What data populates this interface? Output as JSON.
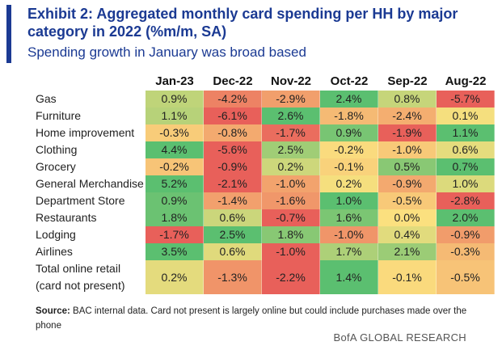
{
  "title": "Exhibit 2: Aggregated monthly card spending per HH by major category in 2022 (%m/m, SA)",
  "subtitle": "Spending growth in January was broad based",
  "chart_data": {
    "type": "table",
    "columns": [
      "Jan-23",
      "Dec-22",
      "Nov-22",
      "Oct-22",
      "Sep-22",
      "Aug-22"
    ],
    "rows": [
      {
        "label": "Gas",
        "values": [
          0.9,
          -4.2,
          -2.9,
          2.4,
          0.8,
          -5.7
        ]
      },
      {
        "label": "Furniture",
        "values": [
          1.1,
          -6.1,
          2.6,
          -1.8,
          -2.4,
          0.1
        ]
      },
      {
        "label": "Home improvement",
        "values": [
          -0.3,
          -0.8,
          -1.7,
          0.9,
          -1.9,
          1.1
        ]
      },
      {
        "label": "Clothing",
        "values": [
          4.4,
          -5.6,
          2.5,
          -0.2,
          -1.0,
          0.6
        ]
      },
      {
        "label": "Grocery",
        "values": [
          -0.2,
          -0.9,
          0.2,
          -0.1,
          0.5,
          0.7
        ]
      },
      {
        "label": "General Merchandise",
        "values": [
          5.2,
          -2.1,
          -1.0,
          0.2,
          -0.9,
          1.0
        ]
      },
      {
        "label": "Department Store",
        "values": [
          0.9,
          -1.4,
          -1.6,
          1.0,
          -0.5,
          -2.8
        ]
      },
      {
        "label": "Restaurants",
        "values": [
          1.8,
          0.6,
          -0.7,
          1.6,
          0.0,
          2.0
        ]
      },
      {
        "label": "Lodging",
        "values": [
          -1.7,
          2.5,
          1.8,
          -1.0,
          0.4,
          -0.9
        ]
      },
      {
        "label": "Airlines",
        "values": [
          3.5,
          0.6,
          -1.0,
          1.7,
          2.1,
          -0.3
        ]
      },
      {
        "label": "Total online retail\n(card not present)",
        "values": [
          0.2,
          -1.3,
          -2.2,
          1.4,
          -0.1,
          -0.5
        ]
      }
    ],
    "value_format": "percent_1dp",
    "color_scale": {
      "negative": "#e8605a",
      "neutral": "#fbe07f",
      "positive": "#5bbf70"
    }
  },
  "source_label": "Source:",
  "source_text": "BAC internal data. Card not present is largely online but could include purchases made over the phone",
  "footer": "BofA GLOBAL RESEARCH"
}
